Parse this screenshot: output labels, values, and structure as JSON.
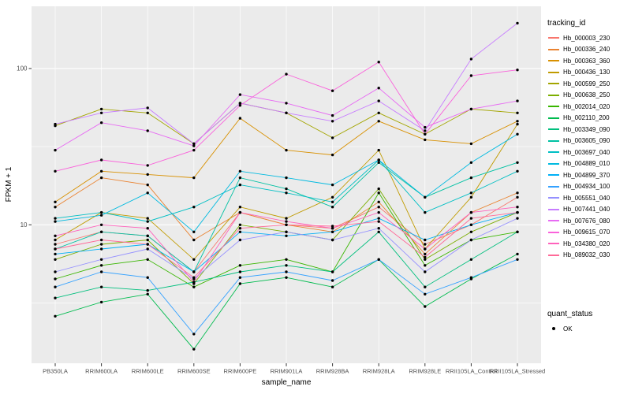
{
  "figure": {
    "background": "#FFFFFF",
    "panel_background": "#EBEBEB",
    "grid_color": "#FFFFFF",
    "axis_text_color": "#4D4D4D",
    "tick_mark_color": "#333333",
    "point_color": "#000000"
  },
  "chart_data": {
    "type": "line",
    "xlabel": "sample_name",
    "ylabel": "FPKM + 1",
    "y_scale": "log10",
    "ylim": [
      1.3,
      250
    ],
    "y_major_ticks": [
      10,
      100
    ],
    "y_minor_ticks": [
      3.162,
      31.62
    ],
    "grid": true,
    "legend_position": "right",
    "categories": [
      "PB350LA",
      "RRIM600LA",
      "RRIM600LE",
      "RRIM600SE",
      "RRIM600PE",
      "RRIM901LA",
      "RRIM928BA",
      "RRIM928LA",
      "RRIM928LE",
      "RRII105LA_Control",
      "RRII105LA_Stressed"
    ],
    "series": [
      {
        "name": "Hb_000003_230",
        "color": "#F8766D",
        "values": [
          7.5,
          9,
          8.5,
          5,
          12,
          10,
          9.5,
          13,
          7.5,
          10,
          15
        ]
      },
      {
        "name": "Hb_000336_240",
        "color": "#EA8331",
        "values": [
          13,
          20,
          18,
          8,
          12,
          10,
          9,
          14,
          6.5,
          12,
          16
        ]
      },
      {
        "name": "Hb_000363_360",
        "color": "#D89000",
        "values": [
          14,
          22,
          21,
          20,
          48,
          30,
          28,
          46,
          35,
          33,
          46
        ]
      },
      {
        "name": "Hb_000436_130",
        "color": "#C09B00",
        "values": [
          8,
          12,
          11,
          6,
          13,
          11,
          15,
          30,
          7,
          15,
          44
        ]
      },
      {
        "name": "Hb_000599_250",
        "color": "#A3A500",
        "values": [
          43,
          55,
          52,
          33,
          60,
          52,
          36,
          52,
          38,
          55,
          52
        ]
      },
      {
        "name": "Hb_000638_250",
        "color": "#7CAE00",
        "values": [
          6,
          7.5,
          8,
          4.2,
          10,
          9,
          8,
          17,
          6,
          9,
          12
        ]
      },
      {
        "name": "Hb_002014_020",
        "color": "#39B600",
        "values": [
          4.5,
          5.5,
          6,
          4,
          5.5,
          6,
          5,
          16,
          5.5,
          8,
          9
        ]
      },
      {
        "name": "Hb_002110_200",
        "color": "#00BB4E",
        "values": [
          2.6,
          3.2,
          3.6,
          1.6,
          4.2,
          4.6,
          4,
          6,
          3,
          4.5,
          6.5
        ]
      },
      {
        "name": "Hb_003349_090",
        "color": "#00BF7D",
        "values": [
          3.4,
          4,
          3.8,
          4.3,
          5,
          5.5,
          5,
          9,
          4,
          6,
          9
        ]
      },
      {
        "name": "Hb_003605_090",
        "color": "#00C1A3",
        "values": [
          7,
          9,
          8.5,
          5,
          20,
          17,
          13,
          25,
          15,
          20,
          25
        ]
      },
      {
        "name": "Hb_003697_040",
        "color": "#00BFC4",
        "values": [
          11,
          12,
          10.5,
          13,
          18,
          16,
          14,
          26,
          12,
          16,
          22
        ]
      },
      {
        "name": "Hb_004889_010",
        "color": "#00BAE0",
        "values": [
          10.5,
          11.5,
          16,
          9,
          22,
          20,
          18,
          26,
          15,
          25,
          38
        ]
      },
      {
        "name": "Hb_004899_370",
        "color": "#00B0F6",
        "values": [
          6.5,
          7,
          7.5,
          5,
          9,
          8.5,
          9,
          11,
          8,
          10,
          12
        ]
      },
      {
        "name": "Hb_004934_100",
        "color": "#35A2FF",
        "values": [
          4,
          5,
          4.6,
          2,
          4.6,
          5,
          4.4,
          6,
          3.6,
          4.6,
          6
        ]
      },
      {
        "name": "Hb_005551_040",
        "color": "#9590FF",
        "values": [
          5,
          6,
          7,
          4.5,
          8,
          9,
          8,
          9.5,
          5,
          8,
          11
        ]
      },
      {
        "name": "Hb_007441_040",
        "color": "#C77CFF",
        "values": [
          44,
          52,
          56,
          33,
          60,
          52,
          46,
          62,
          40,
          115,
          195
        ]
      },
      {
        "name": "Hb_007676_080",
        "color": "#E76BF3",
        "values": [
          30,
          45,
          40,
          32,
          68,
          60,
          50,
          75,
          42,
          55,
          62
        ]
      },
      {
        "name": "Hb_009615_070",
        "color": "#FA62DB",
        "values": [
          22,
          26,
          24,
          30,
          58,
          92,
          72,
          110,
          38,
          90,
          98
        ]
      },
      {
        "name": "Hb_034380_020",
        "color": "#FF62BC",
        "values": [
          8.5,
          10,
          9.5,
          4.3,
          12,
          10.5,
          9.5,
          12,
          7,
          12,
          13
        ]
      },
      {
        "name": "Hb_089032_030",
        "color": "#FF6A98",
        "values": [
          7,
          8,
          7.5,
          4.6,
          9.5,
          10,
          9.8,
          10.5,
          6.2,
          11,
          12
        ]
      }
    ],
    "legend": {
      "tracking_title": "tracking_id",
      "quant_title": "quant_status",
      "quant_entries": [
        {
          "label": "OK"
        }
      ]
    }
  }
}
